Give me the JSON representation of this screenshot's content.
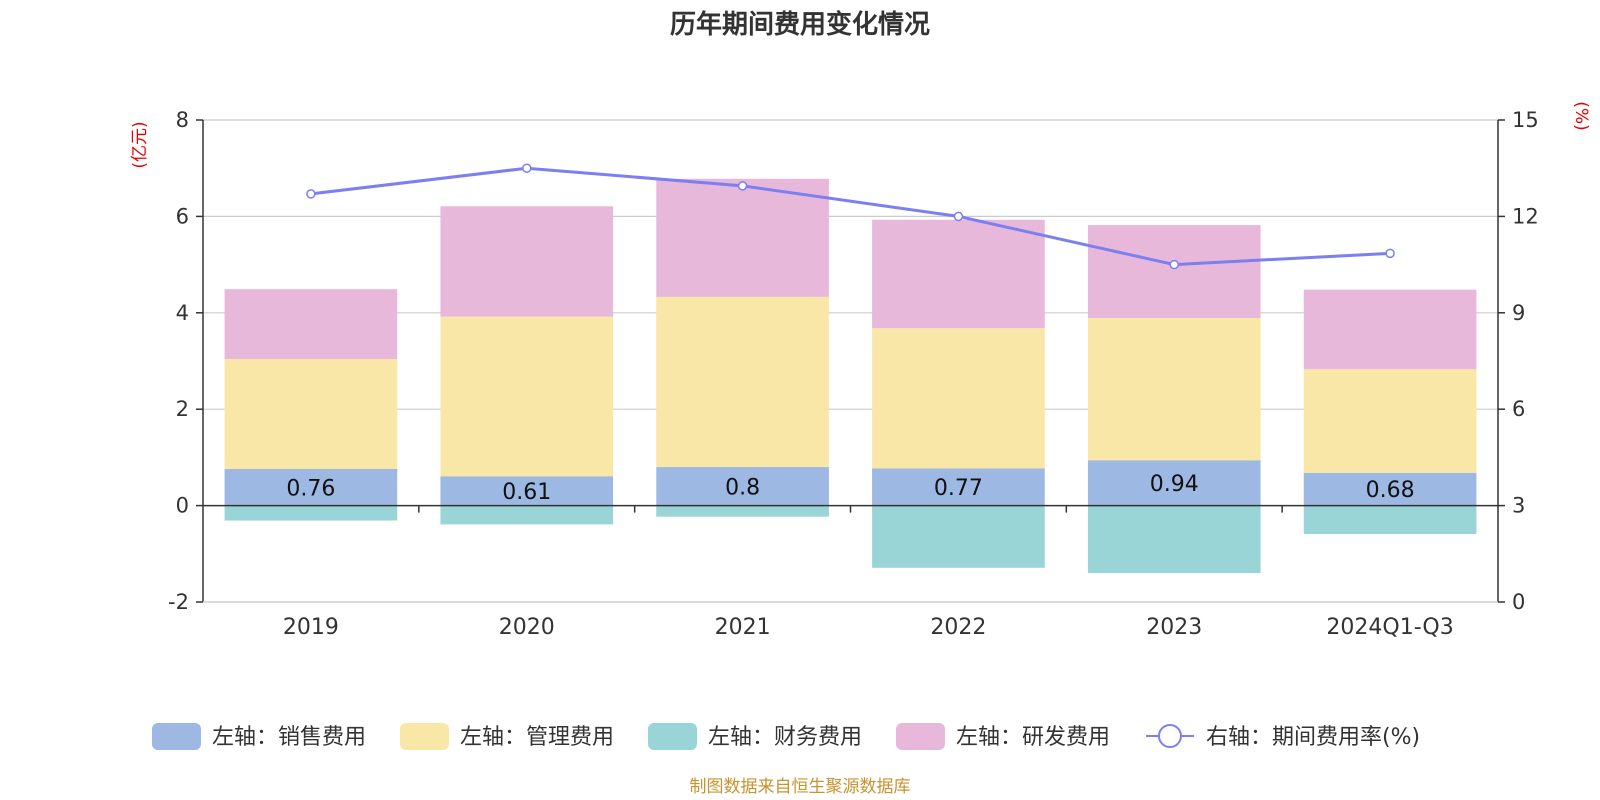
{
  "chart_data": {
    "type": "bar",
    "title": "历年期间费用变化情况",
    "categories": [
      "2019",
      "2020",
      "2021",
      "2022",
      "2023",
      "2024Q1-Q3"
    ],
    "left_axis": {
      "unit": "(亿元)",
      "ylim": [
        -2,
        8
      ],
      "ticks": [
        8,
        6,
        4,
        2,
        0,
        -2
      ]
    },
    "right_axis": {
      "unit": "(%)",
      "ylim": [
        0,
        15
      ],
      "ticks": [
        15,
        12,
        9,
        6,
        3,
        0
      ]
    },
    "series": [
      {
        "name": "左轴：销售费用",
        "color": "#9db8e3",
        "values": [
          0.76,
          0.61,
          0.8,
          0.77,
          0.94,
          0.68
        ],
        "labels": [
          "0.76",
          "0.61",
          "0.8",
          "0.77",
          "0.94",
          "0.68"
        ]
      },
      {
        "name": "左轴：管理费用",
        "color": "#f8e7a6",
        "values": [
          2.28,
          3.31,
          3.53,
          2.91,
          2.95,
          2.15
        ]
      },
      {
        "name": "左轴：财务费用",
        "color": "#99d5d6",
        "values": [
          -0.31,
          -0.39,
          -0.23,
          -1.29,
          -1.4,
          -0.59
        ]
      },
      {
        "name": "左轴：研发费用",
        "color": "#e8b8da",
        "values": [
          1.45,
          2.29,
          2.45,
          2.25,
          1.93,
          1.65
        ]
      },
      {
        "name": "右轴：期间费用率(%)",
        "color": "#7b7fef",
        "type": "line",
        "axis": "right",
        "values": [
          12.7,
          13.5,
          12.95,
          12.0,
          10.5,
          10.85
        ]
      }
    ],
    "grid": true,
    "legend_position": "bottom"
  },
  "source": "制图数据来自恒生聚源数据库"
}
